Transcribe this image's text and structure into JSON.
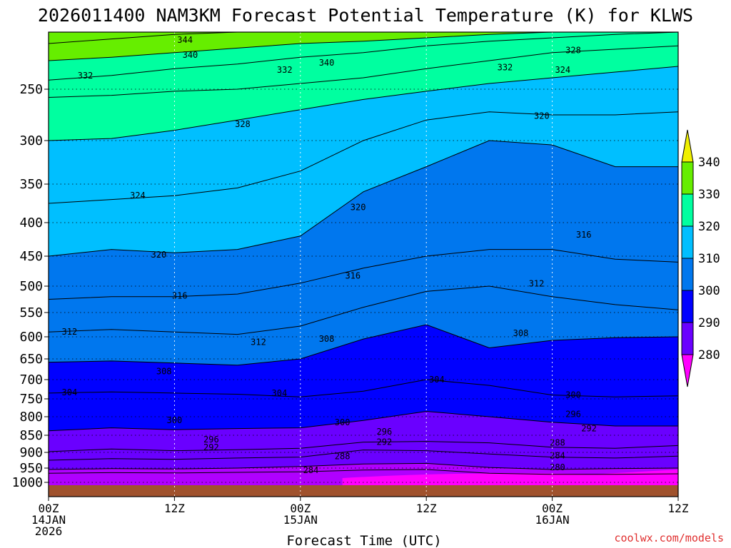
{
  "chart_data": {
    "type": "filled-contour",
    "title": "2026011400 NAM3KM Forecast Potential Temperature (K) for KLWS",
    "xlabel": "Forecast Time (UTC)",
    "ylabel": "",
    "y_axis": {
      "units": "hPa",
      "range": [
        1000,
        200
      ],
      "ticks": [
        250,
        300,
        350,
        400,
        450,
        500,
        550,
        600,
        650,
        700,
        750,
        800,
        850,
        900,
        950,
        1000
      ]
    },
    "x_axis": {
      "units": "forecast hour",
      "range": [
        0,
        60
      ],
      "ticks": [
        {
          "hour": 0,
          "lines": [
            "00Z",
            "14JAN",
            "2026"
          ]
        },
        {
          "hour": 12,
          "lines": [
            "12Z"
          ]
        },
        {
          "hour": 24,
          "lines": [
            "00Z",
            "15JAN"
          ]
        },
        {
          "hour": 36,
          "lines": [
            "12Z"
          ]
        },
        {
          "hour": 48,
          "lines": [
            "00Z",
            "16JAN"
          ]
        },
        {
          "hour": 60,
          "lines": [
            "12Z"
          ]
        }
      ]
    },
    "colorbar": {
      "levels": [
        280,
        290,
        300,
        310,
        320,
        330,
        340
      ],
      "label_levels": [
        "280",
        "290",
        "300",
        "310",
        "320",
        "330",
        "340"
      ],
      "colors": {
        "lt280": "#ff00ff",
        "280-290": "#b000ff",
        "290-300": "#6a00ff",
        "300-310": "#0000ff",
        "310-320": "#0077ee",
        "320-330": "#00bfff",
        "330-340": "#00ffa0",
        "340-350": "#66ee00",
        "gt350": "#f0f000"
      },
      "extend": "both"
    },
    "terrain_color": "#a0522d",
    "contour_interval": 4,
    "isentropes": [
      {
        "theta": 284,
        "pressure": [
          968,
          966,
          967,
          965,
          963,
          957,
          955,
          968,
          972,
          972,
          970
        ]
      },
      {
        "theta": 288,
        "pressure": [
          955,
          952,
          953,
          950,
          945,
          937,
          935,
          948,
          955,
          952,
          950
        ]
      },
      {
        "theta": 292,
        "pressure": [
          925,
          920,
          922,
          918,
          915,
          893,
          895,
          905,
          915,
          918,
          912
        ]
      },
      {
        "theta": 296,
        "pressure": [
          898,
          890,
          895,
          892,
          888,
          870,
          868,
          872,
          885,
          888,
          880
        ]
      },
      {
        "theta": 300,
        "pressure": [
          838,
          830,
          835,
          832,
          830,
          810,
          785,
          800,
          815,
          825,
          825
        ]
      },
      {
        "theta": 304,
        "pressure": [
          735,
          732,
          735,
          738,
          745,
          730,
          700,
          715,
          740,
          745,
          742
        ]
      },
      {
        "theta": 308,
        "pressure": [
          658,
          655,
          660,
          665,
          650,
          605,
          575,
          625,
          608,
          602,
          600
        ]
      },
      {
        "theta": 312,
        "pressure": [
          590,
          585,
          590,
          595,
          578,
          540,
          510,
          500,
          520,
          535,
          545
        ]
      },
      {
        "theta": 316,
        "pressure": [
          525,
          520,
          520,
          515,
          495,
          470,
          450,
          440,
          440,
          455,
          460
        ]
      },
      {
        "theta": 320,
        "pressure": [
          450,
          440,
          445,
          440,
          420,
          360,
          330,
          300,
          305,
          330,
          330
        ]
      },
      {
        "theta": 324,
        "pressure": [
          375,
          370,
          365,
          355,
          335,
          300,
          280,
          272,
          275,
          275,
          272
        ]
      },
      {
        "theta": 328,
        "pressure": [
          300,
          298,
          290,
          280,
          270,
          260,
          252,
          245,
          240,
          235,
          230
        ]
      },
      {
        "theta": 332,
        "pressure": [
          258,
          256,
          252,
          250,
          245,
          240,
          232,
          225,
          218,
          215,
          212
        ]
      },
      {
        "theta": 336,
        "pressure": [
          242,
          238,
          232,
          228,
          222,
          218,
          212,
          208,
          205,
          202,
          200
        ]
      },
      {
        "theta": 340,
        "pressure": [
          225,
          222,
          218,
          214,
          210,
          208,
          205,
          202,
          200,
          200,
          200
        ]
      },
      {
        "theta": 344,
        "pressure": [
          210,
          206,
          202,
          200,
          200,
          200,
          200,
          200,
          200,
          200,
          200
        ]
      }
    ],
    "isentrope_hours": [
      0,
      6,
      12,
      18,
      24,
      30,
      36,
      42,
      48,
      54,
      60
    ],
    "contour_labels": [
      {
        "text": "344",
        "hour": 13,
        "pressure": 207
      },
      {
        "text": "340",
        "hour": 13.5,
        "pressure": 220
      },
      {
        "text": "340",
        "hour": 26.5,
        "pressure": 227
      },
      {
        "text": "332",
        "hour": 3.5,
        "pressure": 238
      },
      {
        "text": "332",
        "hour": 22.5,
        "pressure": 233
      },
      {
        "text": "332",
        "hour": 43.5,
        "pressure": 231
      },
      {
        "text": "328",
        "hour": 50,
        "pressure": 216
      },
      {
        "text": "324",
        "hour": 49,
        "pressure": 233
      },
      {
        "text": "328",
        "hour": 18.5,
        "pressure": 284
      },
      {
        "text": "320",
        "hour": 47,
        "pressure": 276
      },
      {
        "text": "324",
        "hour": 8.5,
        "pressure": 365
      },
      {
        "text": "320",
        "hour": 29.5,
        "pressure": 380
      },
      {
        "text": "316",
        "hour": 51,
        "pressure": 418
      },
      {
        "text": "320",
        "hour": 10.5,
        "pressure": 448
      },
      {
        "text": "316",
        "hour": 29,
        "pressure": 483
      },
      {
        "text": "312",
        "hour": 46.5,
        "pressure": 496
      },
      {
        "text": "316",
        "hour": 12.5,
        "pressure": 518
      },
      {
        "text": "312",
        "hour": 2,
        "pressure": 590
      },
      {
        "text": "312",
        "hour": 20,
        "pressure": 612
      },
      {
        "text": "308",
        "hour": 26.5,
        "pressure": 605
      },
      {
        "text": "308",
        "hour": 45,
        "pressure": 593
      },
      {
        "text": "308",
        "hour": 11,
        "pressure": 680
      },
      {
        "text": "304",
        "hour": 2,
        "pressure": 733
      },
      {
        "text": "304",
        "hour": 22,
        "pressure": 735
      },
      {
        "text": "304",
        "hour": 37,
        "pressure": 700
      },
      {
        "text": "300",
        "hour": 50,
        "pressure": 740
      },
      {
        "text": "300",
        "hour": 12,
        "pressure": 810
      },
      {
        "text": "300",
        "hour": 28,
        "pressure": 815
      },
      {
        "text": "296",
        "hour": 50,
        "pressure": 793
      },
      {
        "text": "296",
        "hour": 15.5,
        "pressure": 862
      },
      {
        "text": "292",
        "hour": 15.5,
        "pressure": 885
      },
      {
        "text": "296",
        "hour": 32,
        "pressure": 840
      },
      {
        "text": "292",
        "hour": 32,
        "pressure": 870
      },
      {
        "text": "292",
        "hour": 51.5,
        "pressure": 832
      },
      {
        "text": "288",
        "hour": 48.5,
        "pressure": 872
      },
      {
        "text": "284",
        "hour": 48.5,
        "pressure": 910
      },
      {
        "text": "288",
        "hour": 28,
        "pressure": 912
      },
      {
        "text": "284",
        "hour": 25,
        "pressure": 958
      },
      {
        "text": "280",
        "hour": 48.5,
        "pressure": 948
      }
    ],
    "credit": "coolwx.com/models"
  }
}
